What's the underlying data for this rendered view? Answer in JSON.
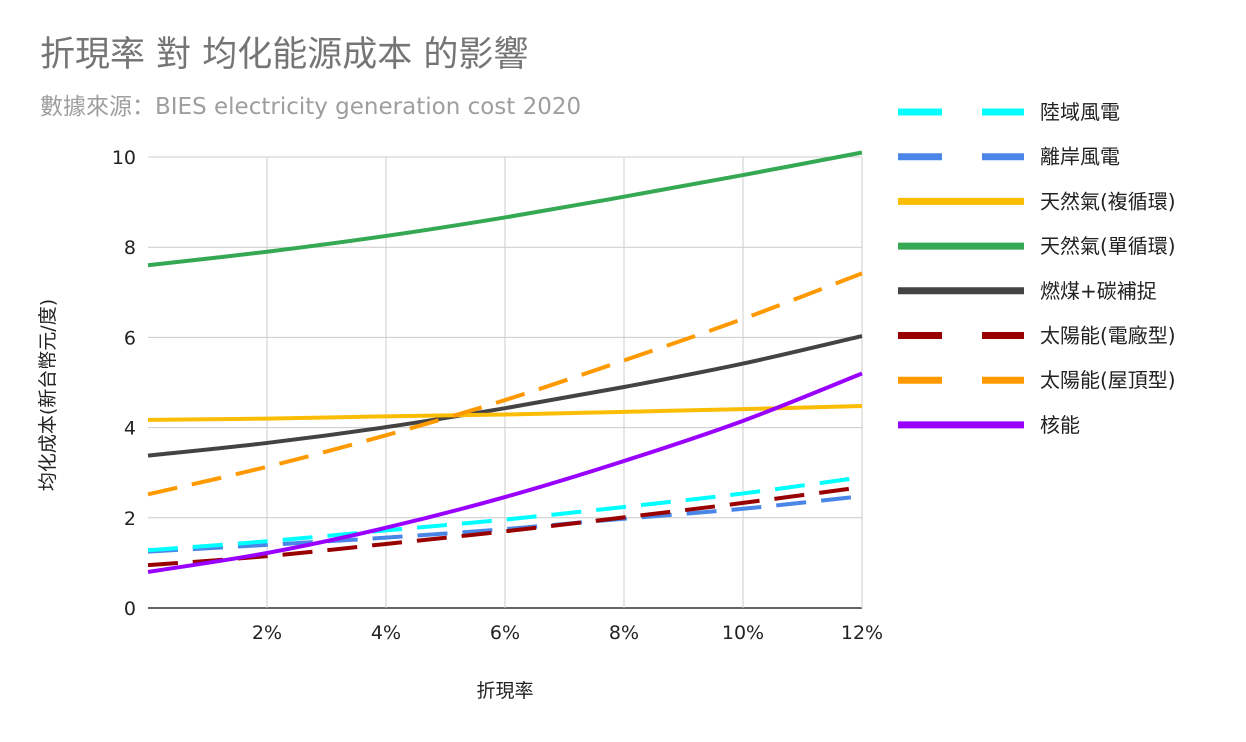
{
  "chart_data": {
    "type": "line",
    "title": "折現率 對 均化能源成本 的影響",
    "subtitle": "數據來源：BIES electricity generation cost 2020",
    "xlabel": "折現率",
    "ylabel": "均化成本(新台幣元/度)",
    "xlim": [
      0,
      12
    ],
    "ylim": [
      0,
      10
    ],
    "x_ticks": [
      2,
      4,
      6,
      8,
      10,
      12
    ],
    "x_tick_labels": [
      "2%",
      "4%",
      "6%",
      "8%",
      "10%",
      "12%"
    ],
    "y_ticks": [
      0,
      2,
      4,
      6,
      8,
      10
    ],
    "y_tick_labels": [
      "0",
      "2",
      "4",
      "6",
      "8",
      "10"
    ],
    "grid": true,
    "legend_position": "right",
    "x": [
      0,
      2,
      4,
      6,
      8,
      10,
      12
    ],
    "series": [
      {
        "name": "陸域風電",
        "color": "#00ffff",
        "dash": "dashed",
        "values": [
          1.28,
          1.48,
          1.72,
          1.96,
          2.24,
          2.54,
          2.9
        ]
      },
      {
        "name": "離岸風電",
        "color": "#4a86e8",
        "dash": "dashed",
        "values": [
          1.25,
          1.4,
          1.56,
          1.75,
          1.98,
          2.2,
          2.48
        ]
      },
      {
        "name": "天然氣(複循環)",
        "color": "#fbbc04",
        "dash": "solid",
        "values": [
          4.17,
          4.2,
          4.25,
          4.29,
          4.35,
          4.41,
          4.48
        ]
      },
      {
        "name": "天然氣(單循環)",
        "color": "#34a853",
        "dash": "solid",
        "values": [
          7.6,
          7.9,
          8.25,
          8.66,
          9.12,
          9.6,
          10.1
        ]
      },
      {
        "name": "燃煤+碳補捉",
        "color": "#434343",
        "dash": "solid",
        "values": [
          3.38,
          3.66,
          4.01,
          4.43,
          4.9,
          5.42,
          6.03
        ]
      },
      {
        "name": "太陽能(電廠型)",
        "color": "#990000",
        "dash": "dashed",
        "values": [
          0.95,
          1.15,
          1.42,
          1.7,
          2.01,
          2.33,
          2.68
        ]
      },
      {
        "name": "太陽能(屋頂型)",
        "color": "#ff9900",
        "dash": "dashed",
        "values": [
          2.52,
          3.13,
          3.83,
          4.61,
          5.49,
          6.41,
          7.42
        ]
      },
      {
        "name": "核能",
        "color": "#9900ff",
        "dash": "solid",
        "values": [
          0.8,
          1.22,
          1.78,
          2.46,
          3.26,
          4.15,
          5.2
        ]
      }
    ]
  }
}
